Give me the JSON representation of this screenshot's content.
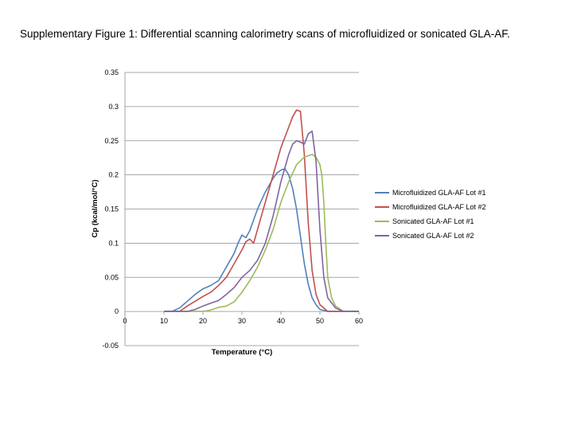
{
  "caption": "Supplementary Figure 1: Differential scanning calorimetry scans of microfluidized or sonicated GLA-AF.",
  "chart_data": {
    "type": "line",
    "title": "",
    "xlabel": "Temperature (°C)",
    "ylabel": "Cp (kcal/mol/°C)",
    "xlim": [
      0,
      60
    ],
    "ylim": [
      -0.05,
      0.35
    ],
    "xticks": [
      0,
      10,
      20,
      30,
      40,
      50,
      60
    ],
    "yticks": [
      -0.05,
      0,
      0.05,
      0.1,
      0.15,
      0.2,
      0.25,
      0.3,
      0.35
    ],
    "xtick_labels": [
      "0",
      "10",
      "20",
      "30",
      "40",
      "50",
      "60"
    ],
    "ytick_labels": [
      "-0.05",
      "0",
      "0.05",
      "0.1",
      "0.15",
      "0.2",
      "0.25",
      "0.3",
      "0.35"
    ],
    "grid": "horizontal",
    "legend_position": "right",
    "series": [
      {
        "name": "Microfluidized GLA-AF Lot #1",
        "color": "#4F81BD",
        "x": [
          10,
          12,
          14,
          16,
          18,
          20,
          22,
          24,
          26,
          28,
          29,
          30,
          31,
          32,
          34,
          36,
          38,
          39,
          40,
          41,
          42,
          43,
          44,
          45,
          46,
          47,
          48,
          49,
          50,
          52,
          54,
          56,
          58,
          60
        ],
        "y": [
          0,
          0,
          0.005,
          0.015,
          0.025,
          0.033,
          0.038,
          0.045,
          0.065,
          0.085,
          0.1,
          0.112,
          0.108,
          0.118,
          0.15,
          0.175,
          0.195,
          0.203,
          0.207,
          0.209,
          0.2,
          0.18,
          0.15,
          0.11,
          0.07,
          0.04,
          0.02,
          0.01,
          0.003,
          0,
          0,
          0,
          0,
          0
        ]
      },
      {
        "name": "Microfluidized GLA-AF Lot #2",
        "color": "#C0504D",
        "x": [
          10,
          12,
          14,
          16,
          18,
          20,
          22,
          24,
          26,
          28,
          30,
          31,
          32,
          33,
          34,
          36,
          38,
          40,
          41,
          42,
          43,
          44,
          45,
          46,
          47,
          48,
          49,
          50,
          52,
          54,
          56,
          58,
          60
        ],
        "y": [
          0,
          0,
          0,
          0.008,
          0.015,
          0.022,
          0.028,
          0.038,
          0.05,
          0.07,
          0.09,
          0.102,
          0.106,
          0.1,
          0.12,
          0.16,
          0.2,
          0.24,
          0.255,
          0.27,
          0.285,
          0.295,
          0.293,
          0.23,
          0.13,
          0.06,
          0.025,
          0.01,
          0,
          0,
          0,
          0,
          0
        ]
      },
      {
        "name": "Sonicated GLA-AF Lot #1",
        "color": "#9BBB59",
        "x": [
          10,
          14,
          16,
          18,
          20,
          22,
          24,
          26,
          28,
          30,
          32,
          34,
          36,
          38,
          40,
          42,
          44,
          46,
          47,
          48,
          49,
          50,
          50.5,
          51,
          51.5,
          52,
          53,
          54,
          56,
          58,
          60
        ],
        "y": [
          0,
          0,
          0,
          0,
          0,
          0.002,
          0.006,
          0.008,
          0.014,
          0.028,
          0.045,
          0.065,
          0.09,
          0.12,
          0.16,
          0.19,
          0.215,
          0.226,
          0.228,
          0.23,
          0.226,
          0.215,
          0.2,
          0.16,
          0.1,
          0.05,
          0.02,
          0.008,
          0,
          0,
          0
        ]
      },
      {
        "name": "Sonicated GLA-AF Lot #2",
        "color": "#8064A2",
        "x": [
          10,
          14,
          16,
          18,
          20,
          22,
          24,
          26,
          28,
          30,
          32,
          34,
          36,
          38,
          40,
          42,
          43,
          44,
          45,
          46,
          47,
          48,
          49,
          50,
          51,
          52,
          54,
          56,
          58,
          60
        ],
        "y": [
          0,
          0,
          0,
          0.003,
          0.008,
          0.012,
          0.016,
          0.025,
          0.035,
          0.05,
          0.06,
          0.075,
          0.1,
          0.14,
          0.19,
          0.23,
          0.245,
          0.25,
          0.248,
          0.245,
          0.26,
          0.264,
          0.22,
          0.12,
          0.05,
          0.02,
          0.005,
          0,
          0,
          0
        ]
      }
    ]
  }
}
